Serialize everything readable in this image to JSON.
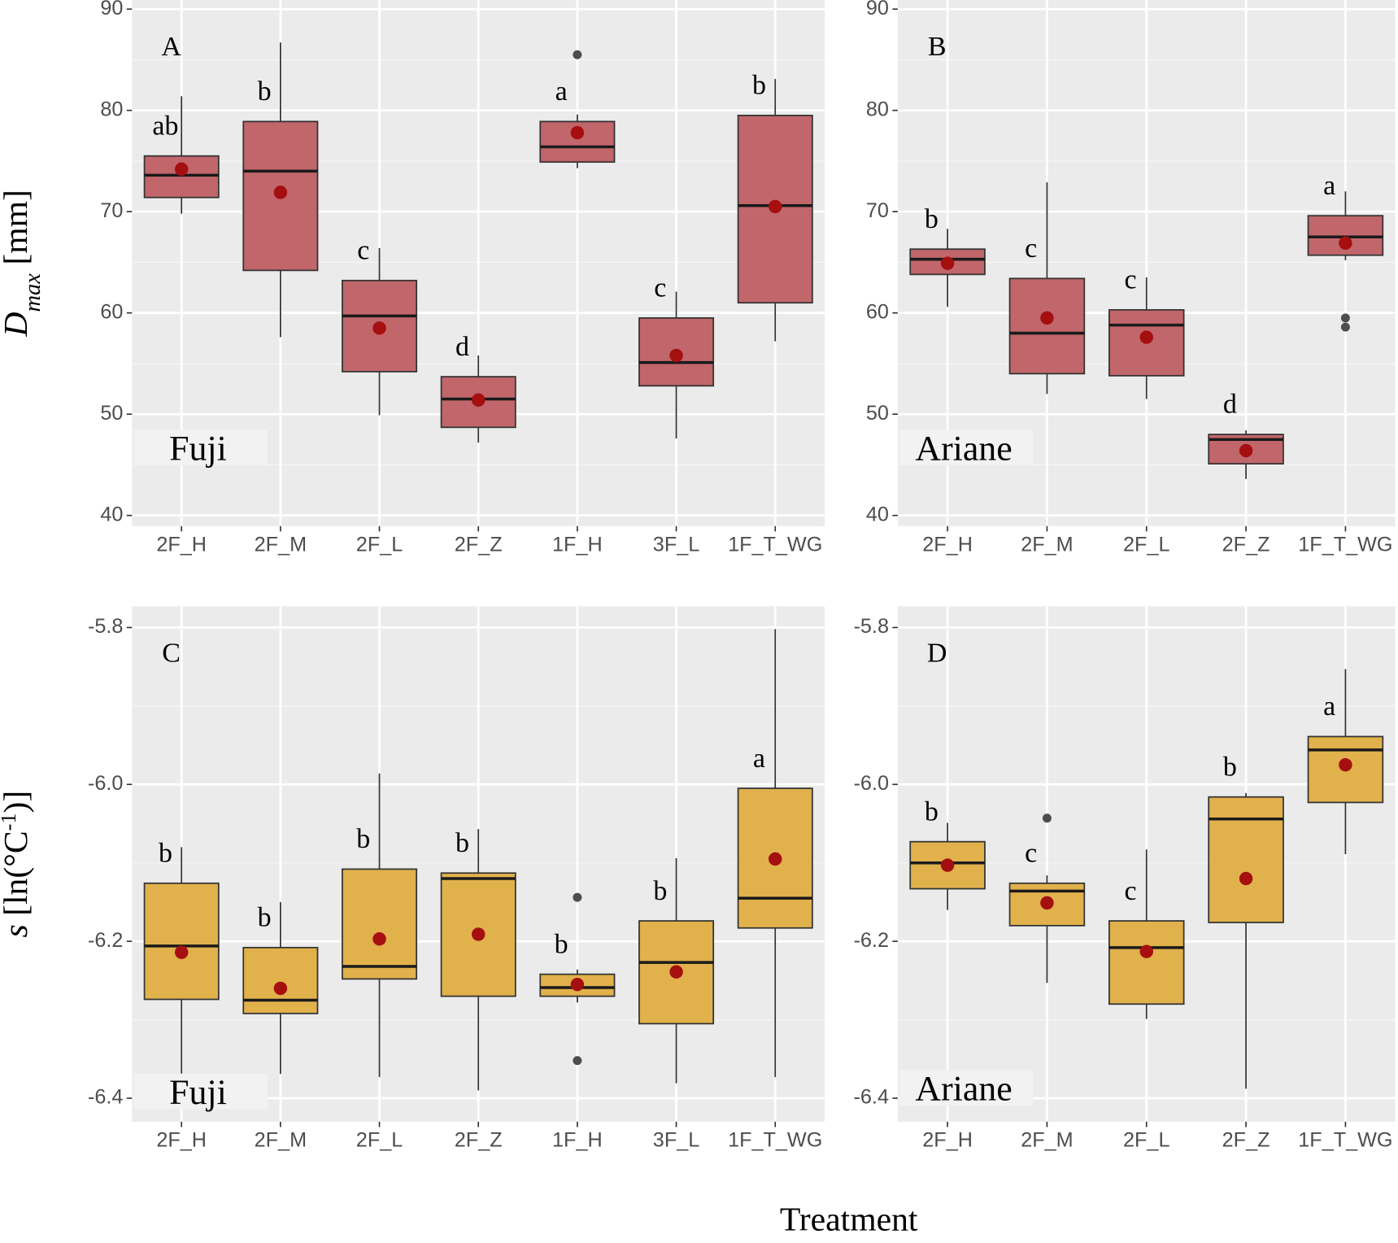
{
  "figure": {
    "xlabel": "Treatment"
  },
  "chart_data": [
    {
      "type": "box",
      "panel_label": "A",
      "cultivar": "Fuji",
      "ylabel": [
        {
          "text": "D",
          "style": "italic"
        },
        {
          "text": "max",
          "style": "sub-italic"
        },
        {
          "text": " [mm]",
          "style": "normal"
        }
      ],
      "categories": [
        "2F_H",
        "2F_M",
        "2F_L",
        "2F_Z",
        "1F_H",
        "3F_L",
        "1F_T_WG"
      ],
      "ylim": [
        38.95,
        90.9
      ],
      "yticks": [
        40,
        50,
        60,
        70,
        80,
        90
      ],
      "grid": true,
      "color": "#c1666b",
      "mean_color": "#a50f0f",
      "letters": [
        "ab",
        "b",
        "c",
        "d",
        "a",
        "c",
        "b"
      ],
      "boxes": [
        {
          "low": 69.8,
          "q1": 71.4,
          "median": 73.6,
          "q3": 75.5,
          "high": 81.4,
          "mean": 74.2,
          "outliers": []
        },
        {
          "low": 57.6,
          "q1": 64.2,
          "median": 74.0,
          "q3": 78.9,
          "high": 86.7,
          "mean": 71.9,
          "outliers": []
        },
        {
          "low": 49.9,
          "q1": 54.2,
          "median": 59.7,
          "q3": 63.2,
          "high": 66.4,
          "mean": 58.5,
          "outliers": []
        },
        {
          "low": 47.2,
          "q1": 48.7,
          "median": 51.5,
          "q3": 53.7,
          "high": 55.8,
          "mean": 51.4,
          "outliers": []
        },
        {
          "low": 74.3,
          "q1": 74.9,
          "median": 76.4,
          "q3": 78.9,
          "high": 79.6,
          "mean": 77.8,
          "outliers": [
            85.5
          ]
        },
        {
          "low": 47.6,
          "q1": 52.8,
          "median": 55.1,
          "q3": 59.5,
          "high": 62.1,
          "mean": 55.8,
          "outliers": []
        },
        {
          "low": 57.2,
          "q1": 61.0,
          "median": 70.6,
          "q3": 79.5,
          "high": 83.1,
          "mean": 70.5,
          "outliers": []
        }
      ]
    },
    {
      "type": "box",
      "panel_label": "B",
      "cultivar": "Ariane",
      "categories": [
        "2F_H",
        "2F_M",
        "2F_L",
        "2F_Z",
        "1F_T_WG"
      ],
      "ylim": [
        38.95,
        90.9
      ],
      "yticks": [
        40,
        50,
        60,
        70,
        80,
        90
      ],
      "grid": true,
      "color": "#c1666b",
      "mean_color": "#a50f0f",
      "letters": [
        "b",
        "c",
        "c",
        "d",
        "a"
      ],
      "boxes": [
        {
          "low": 60.6,
          "q1": 63.8,
          "median": 65.3,
          "q3": 66.3,
          "high": 68.3,
          "mean": 64.9,
          "outliers": []
        },
        {
          "low": 52.0,
          "q1": 54.0,
          "median": 58.0,
          "q3": 63.4,
          "high": 72.9,
          "mean": 59.5,
          "outliers": []
        },
        {
          "low": 51.5,
          "q1": 53.8,
          "median": 58.8,
          "q3": 60.3,
          "high": 63.5,
          "mean": 57.6,
          "outliers": []
        },
        {
          "low": 43.6,
          "q1": 45.1,
          "median": 47.5,
          "q3": 48.0,
          "high": 48.4,
          "mean": 46.4,
          "outliers": []
        },
        {
          "low": 65.2,
          "q1": 65.7,
          "median": 67.5,
          "q3": 69.6,
          "high": 72.0,
          "mean": 66.9,
          "outliers": [
            59.5,
            58.6
          ]
        }
      ]
    },
    {
      "type": "box",
      "panel_label": "C",
      "cultivar": "Fuji",
      "ylabel": [
        {
          "text": "s",
          "style": "italic"
        },
        {
          "text": " [ln(°C",
          "style": "normal"
        },
        {
          "text": "-1",
          "style": "sup"
        },
        {
          "text": ")]",
          "style": "normal"
        }
      ],
      "categories": [
        "2F_H",
        "2F_M",
        "2F_L",
        "2F_Z",
        "1F_H",
        "3F_L",
        "1F_T_WG"
      ],
      "ylim": [
        -6.43,
        -5.773
      ],
      "yticks": [
        -6.4,
        -6.2,
        {
          "value": -6,
          "label": "-6.0"
        },
        -5.8
      ],
      "grid": true,
      "color": "#e1b14c",
      "mean_color": "#a50f0f",
      "letters": [
        "b",
        "b",
        "b",
        "b",
        "b",
        "b",
        "a"
      ],
      "boxes": [
        {
          "low": -6.375,
          "q1": -6.274,
          "median": -6.206,
          "q3": -6.126,
          "high": -6.08,
          "mean": -6.214,
          "outliers": []
        },
        {
          "low": -6.369,
          "q1": -6.292,
          "median": -6.275,
          "q3": -6.208,
          "high": -6.15,
          "mean": -6.26,
          "outliers": []
        },
        {
          "low": -6.373,
          "q1": -6.248,
          "median": -6.232,
          "q3": -6.108,
          "high": -5.986,
          "mean": -6.197,
          "outliers": []
        },
        {
          "low": -6.39,
          "q1": -6.27,
          "median": -6.12,
          "q3": -6.113,
          "high": -6.057,
          "mean": -6.191,
          "outliers": []
        },
        {
          "low": -6.278,
          "q1": -6.27,
          "median": -6.259,
          "q3": -6.242,
          "high": -6.236,
          "mean": -6.255,
          "outliers": [
            -6.144,
            -6.352
          ]
        },
        {
          "low": -6.381,
          "q1": -6.305,
          "median": -6.227,
          "q3": -6.174,
          "high": -6.094,
          "mean": -6.239,
          "outliers": []
        },
        {
          "low": -6.373,
          "q1": -6.183,
          "median": -6.145,
          "q3": -6.005,
          "high": -5.802,
          "mean": -6.095,
          "outliers": []
        }
      ]
    },
    {
      "type": "box",
      "panel_label": "D",
      "cultivar": "Ariane",
      "categories": [
        "2F_H",
        "2F_M",
        "2F_L",
        "2F_Z",
        "1F_T_WG"
      ],
      "ylim": [
        -6.43,
        -5.773
      ],
      "yticks": [
        -6.4,
        -6.2,
        {
          "value": -6,
          "label": "-6.0"
        },
        -5.8
      ],
      "grid": true,
      "color": "#e1b14c",
      "mean_color": "#a50f0f",
      "letters": [
        "b",
        "c",
        "c",
        "b",
        "a"
      ],
      "boxes": [
        {
          "low": -6.16,
          "q1": -6.133,
          "median": -6.1,
          "q3": -6.073,
          "high": -6.049,
          "mean": -6.103,
          "outliers": []
        },
        {
          "low": -6.253,
          "q1": -6.18,
          "median": -6.136,
          "q3": -6.126,
          "high": -6.116,
          "mean": -6.151,
          "outliers": [
            -6.043
          ]
        },
        {
          "low": -6.299,
          "q1": -6.28,
          "median": -6.208,
          "q3": -6.174,
          "high": -6.083,
          "mean": -6.213,
          "outliers": []
        },
        {
          "low": -6.388,
          "q1": -6.176,
          "median": -6.044,
          "q3": -6.016,
          "high": -6.011,
          "mean": -6.12,
          "outliers": []
        },
        {
          "low": -6.089,
          "q1": -6.023,
          "median": -5.956,
          "q3": -5.939,
          "high": -5.853,
          "mean": -5.975,
          "outliers": []
        }
      ]
    }
  ]
}
